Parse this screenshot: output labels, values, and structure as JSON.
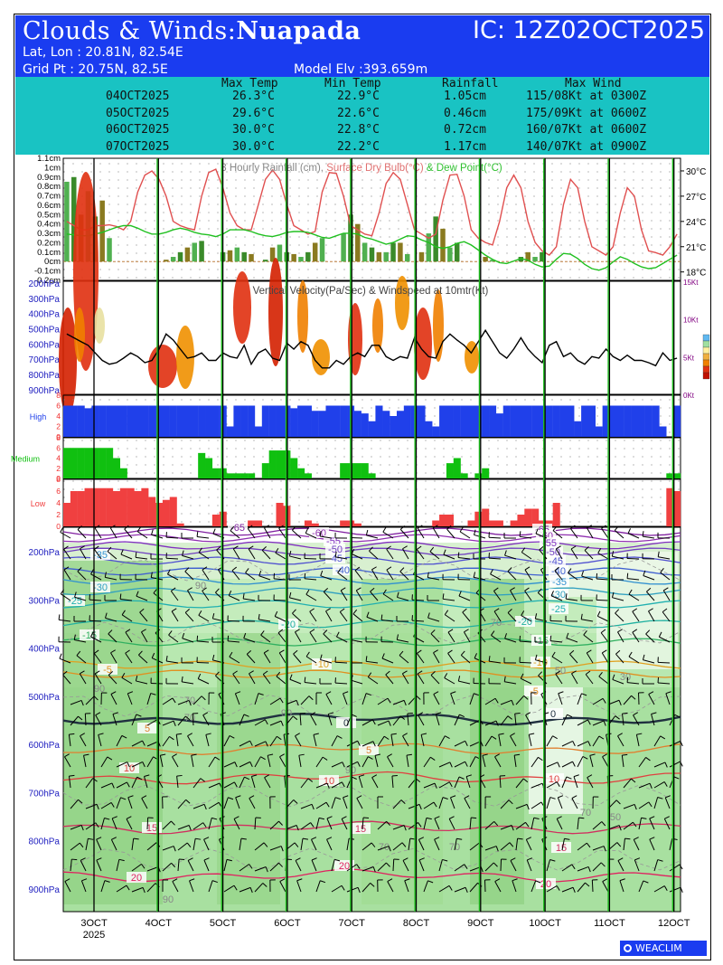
{
  "header": {
    "title_prefix": "Clouds & Winds:",
    "location": "Nuapada",
    "ic": "IC: 12Z02OCT2025",
    "latlon": "Lat, Lon : 20.81N, 82.54E",
    "gridpt": "Grid Pt  : 20.75N, 82.5E",
    "elevation": "Model Elv :393.659m"
  },
  "summary": {
    "headers": [
      "Max Temp",
      "Min Temp",
      "Rainfall",
      "Max Wind"
    ],
    "rows": [
      {
        "date": "04OCT2025",
        "max_temp": "26.3°C",
        "min_temp": "22.9°C",
        "rainfall": "1.05cm",
        "max_wind": "115/08Kt at 0300Z"
      },
      {
        "date": "05OCT2025",
        "max_temp": "29.6°C",
        "min_temp": "22.6°C",
        "rainfall": "0.46cm",
        "max_wind": "175/09Kt at 0600Z"
      },
      {
        "date": "06OCT2025",
        "max_temp": "30.0°C",
        "min_temp": "22.8°C",
        "rainfall": "0.72cm",
        "max_wind": "160/07Kt at 0600Z"
      },
      {
        "date": "07OCT2025",
        "max_temp": "30.0°C",
        "min_temp": "22.2°C",
        "rainfall": "1.17cm",
        "max_wind": "140/07Kt at 0900Z"
      }
    ]
  },
  "chart_data": [
    {
      "type": "bar",
      "title": "3 Hourly Rainfall (cm), Surface Dry Bulb(°C) & Dew Point(°C)",
      "title_parts": [
        "3 Hourly Rainfall (cm), ",
        "Surface Dry Bulb(°C)",
        " & Dew Point(°C)"
      ],
      "y_left_ticks": [
        "1.1cm",
        "1cm",
        "0.9cm",
        "0.8cm",
        "0.7cm",
        "0.6cm",
        "0.5cm",
        "0.4cm",
        "0.3cm",
        "0.2cm",
        "0.1cm",
        "0cm",
        "-0.1cm",
        "-0.2cm"
      ],
      "y_right_ticks": [
        "30°C",
        "27°C",
        "24°C",
        "21°C",
        "18°C"
      ],
      "ylim_left": [
        -0.2,
        1.1
      ],
      "ylim_right": [
        17,
        31.5
      ],
      "rain_cm": [
        0.85,
        0.9,
        0.5,
        0.75,
        0.48,
        0.65,
        0.25,
        0.0,
        0.0,
        0.0,
        0.0,
        0.0,
        0.0,
        0.0,
        0.02,
        0.05,
        0.1,
        0.15,
        0.2,
        0.22,
        0.0,
        0.0,
        0.1,
        0.12,
        0.15,
        0.1,
        0.08,
        0.0,
        0.02,
        0.15,
        0.18,
        0.1,
        0.08,
        0.05,
        0.1,
        0.2,
        0.25,
        0.0,
        0.0,
        0.3,
        0.5,
        0.4,
        0.2,
        0.15,
        0.1,
        0.1,
        0.2,
        0.2,
        0.08,
        0.0,
        0.1,
        0.3,
        0.48,
        0.35,
        0.15,
        0.2,
        0.0,
        0.0,
        0.0,
        0.05,
        0.02,
        0.0,
        0.0,
        0.0,
        0.05,
        0.1,
        0.05,
        0.1,
        0.0,
        0.0,
        0.0,
        0.0,
        0.0,
        0.0,
        0.0,
        0.0,
        0.0,
        0.0,
        0.0,
        0.0,
        0.0,
        0.0,
        0.0,
        0.0,
        0.0,
        0.0,
        0.0
      ],
      "dry_bulb_c": [
        24,
        23.5,
        23,
        23,
        23.5,
        23.5,
        23.6,
        23.4,
        23,
        24,
        27.5,
        29.5,
        30,
        29,
        27,
        24,
        23.5,
        23.2,
        23,
        27,
        29.8,
        30.2,
        28,
        25,
        23.5,
        23,
        23,
        26,
        29,
        30.1,
        29,
        26,
        23.5,
        23,
        22.5,
        22.8,
        27.5,
        29.8,
        29.7,
        27,
        23.5,
        23,
        22.5,
        22.3,
        25,
        28.5,
        29.8,
        29,
        26,
        23,
        22.5,
        22,
        22.5,
        26.5,
        29.5,
        29.6,
        27,
        23,
        22,
        21.5,
        21.2,
        24,
        28,
        29.5,
        28,
        24,
        21.5,
        20.5,
        20,
        21,
        26,
        29,
        28,
        24,
        21,
        20.5,
        20,
        21,
        25,
        28,
        27,
        23,
        20.5,
        20.3,
        20,
        21,
        22.5
      ],
      "dew_point_c": [
        22.5,
        22.4,
        22.3,
        22.3,
        22.5,
        22.7,
        23,
        23.3,
        23.5,
        23.5,
        23.2,
        22.8,
        22.5,
        22.5,
        22.7,
        23,
        23.2,
        23,
        22.7,
        22.5,
        22.4,
        22.2,
        22.5,
        23,
        23,
        23,
        22.8,
        22.5,
        22.3,
        22.2,
        22.4,
        22.7,
        22.8,
        22.8,
        22.7,
        22.4,
        22.1,
        22,
        22.3,
        22.6,
        22.6,
        22.5,
        22.1,
        21.9,
        21.6,
        21.3,
        21.5,
        21.9,
        22.3,
        22.2,
        21.8,
        21.5,
        21,
        20.8,
        21,
        21.4,
        21.6,
        21.2,
        20.6,
        20,
        19.5,
        19.1,
        19,
        19.3,
        19.6,
        19.4,
        18.9,
        18.6,
        18.7,
        19.5,
        20.2,
        20.1,
        19.6,
        18.9,
        18.4,
        18.2,
        18.5,
        19.2,
        19.8,
        19.5,
        19,
        18.6,
        18.4,
        18.5,
        19,
        19.5,
        20
      ]
    },
    {
      "type": "heatmap",
      "title": "Vertical Velocity(Pa/Sec) & Windspeed at 10mtr(Kt)",
      "title_parts": [
        "Vertical Velocity(Pa/Sec)",
        " & ",
        "Windspeed at 10mtr(Kt)"
      ],
      "y_left_ticks": [
        "200hPa",
        "300hPa",
        "400hPa",
        "500hPa",
        "600hPa",
        "700hPa",
        "800hPa",
        "900hPa"
      ],
      "y_right_ticks": [
        "15Kt",
        "10Kt",
        "5Kt",
        "0Kt"
      ],
      "ylim_right": [
        0,
        15
      ],
      "windspeed_kt": [
        8,
        7.5,
        7,
        6.5,
        5.5,
        4.5,
        4,
        4.2,
        4.8,
        5.5,
        5,
        4.2,
        4.5,
        6,
        8,
        7.2,
        6,
        4.8,
        5,
        5.5,
        4.5,
        4.5,
        5.5,
        5,
        4.8,
        6.5,
        4,
        5.5,
        6,
        4.8,
        4.5,
        6.8,
        6,
        7,
        6.5,
        4.5,
        3.5,
        3.5,
        4.5,
        4,
        5,
        5.5,
        5,
        6.5,
        6.5,
        5,
        4.5,
        5,
        4.8,
        7.5,
        6,
        5,
        4.8,
        7,
        8,
        7.2,
        6.5,
        5.5,
        7,
        8.5,
        7,
        5.5,
        4.8,
        6,
        7.5,
        6,
        5,
        4.2,
        6.5,
        7,
        5,
        5.5,
        4.5,
        4,
        5,
        4.8,
        6,
        5,
        4.5,
        5.2,
        4.5,
        4.5,
        4.2,
        3.8,
        5.5,
        4.5,
        4.8
      ]
    },
    {
      "type": "bar",
      "title": "",
      "panels": [
        {
          "label": "High",
          "color": "#2040ea",
          "y_ticks": [
            "8",
            "6",
            "4",
            "2",
            "0"
          ],
          "ylim": [
            0,
            8
          ],
          "values": [
            6,
            6,
            6,
            5.5,
            6,
            6,
            6,
            6,
            6,
            6,
            6,
            6,
            6,
            6,
            6,
            6,
            6,
            6,
            6,
            6,
            6,
            6,
            6,
            2,
            6,
            6,
            6,
            2,
            6,
            6,
            6,
            6,
            5.5,
            6,
            6,
            5,
            5,
            6,
            6,
            6,
            6,
            5,
            4.5,
            3,
            6,
            5,
            4,
            5,
            6,
            6,
            6,
            3,
            2,
            6,
            6,
            6,
            6,
            6,
            6,
            6,
            6,
            4.5,
            6,
            6,
            6,
            6,
            6,
            6,
            6,
            6,
            6,
            6,
            3,
            6,
            6,
            2,
            6,
            6,
            6,
            6,
            6,
            6,
            6,
            6,
            2,
            0,
            6
          ]
        },
        {
          "label": "Medium",
          "color": "#10c010",
          "y_ticks": [
            "8",
            "6",
            "4",
            "2",
            "0"
          ],
          "ylim": [
            0,
            8
          ],
          "values": [
            6,
            6,
            6,
            6,
            6,
            6,
            6,
            4,
            2,
            0,
            0,
            0,
            0,
            0,
            0,
            0,
            0,
            0,
            0,
            5,
            4,
            2,
            2,
            1,
            1,
            1,
            1,
            0,
            3,
            5.5,
            5.5,
            5.5,
            4,
            2,
            1,
            0,
            0,
            0,
            0,
            3,
            3,
            3,
            3,
            1,
            0,
            0,
            0,
            0,
            0,
            0,
            0,
            0,
            0,
            0,
            3,
            4,
            1,
            0,
            1,
            2,
            0,
            0,
            0,
            0,
            0,
            0,
            0,
            0,
            0,
            0,
            0,
            0,
            0,
            0,
            0,
            0,
            0,
            0,
            0,
            0,
            0,
            0,
            0,
            0,
            0,
            1,
            1
          ]
        },
        {
          "label": "Low",
          "color": "#f04040",
          "y_ticks": [
            "8",
            "6",
            "4",
            "2",
            "0"
          ],
          "ylim": [
            0,
            8
          ],
          "values": [
            4,
            6,
            6,
            6.5,
            6.5,
            6.5,
            6.5,
            6,
            6.5,
            6.5,
            6,
            6.5,
            5,
            4,
            4.5,
            5,
            0.5,
            0,
            0,
            0,
            0,
            2,
            2.5,
            0,
            0,
            0,
            1,
            1,
            0,
            0,
            4,
            3.5,
            0,
            0,
            1,
            0.5,
            0,
            0,
            0,
            1,
            1,
            0.5,
            0,
            0,
            0,
            0,
            0,
            0,
            0,
            0,
            0,
            0,
            1,
            2,
            2,
            0,
            0,
            1,
            2.5,
            3,
            1,
            1,
            0,
            1,
            2,
            3,
            3,
            1,
            1,
            4,
            0,
            0,
            0,
            0,
            0,
            0,
            0,
            0,
            0,
            0,
            0,
            0,
            0,
            0,
            0,
            6.5,
            6
          ]
        }
      ]
    },
    {
      "type": "heatmap",
      "title": "",
      "y_ticks": [
        "200hPa",
        "300hPa",
        "400hPa",
        "500hPa",
        "600hPa",
        "700hPa",
        "800hPa",
        "900hPa"
      ],
      "temperature_contour_labels": [
        "-65",
        "-60",
        "-55",
        "-50",
        "-45",
        "-40",
        "-35",
        "-30",
        "-25",
        "-20",
        "-15",
        "-10",
        "-5",
        "0",
        "5",
        "10",
        "15",
        "20"
      ],
      "humidity_contour_labels": [
        "90",
        "70",
        "50",
        "30"
      ],
      "x_ticks": [
        "3OCT",
        "4OCT",
        "5OCT",
        "6OCT",
        "7OCT",
        "8OCT",
        "9OCT",
        "10OCT",
        "11OCT",
        "12OCT"
      ],
      "x_year": "2025"
    }
  ],
  "footer": {
    "logo_text": "WEACLIM"
  }
}
